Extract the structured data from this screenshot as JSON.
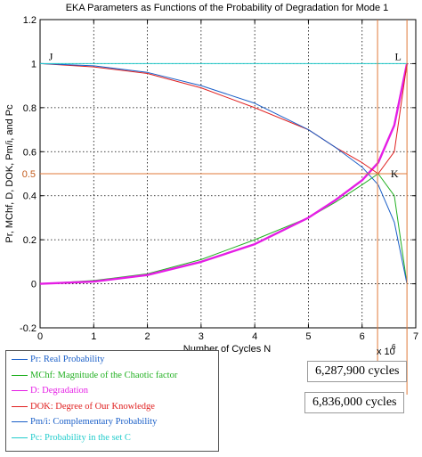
{
  "chart_data": {
    "type": "line",
    "title": "EKA Parameters as Functions of the Probability of Degradation for Mode 1",
    "xlabel": "Number of Cycles N",
    "ylabel": "Pr, MChf, D, DOK, Pm/i, and Pc",
    "x_scale_label": "x 10",
    "x_scale_exponent": "6",
    "xlim": [
      0,
      7
    ],
    "ylim": [
      -0.2,
      1.2
    ],
    "xticks": [
      "0",
      "1",
      "2",
      "3",
      "4",
      "5",
      "6",
      "7"
    ],
    "yticks": [
      "-0.2",
      "0",
      "0.2",
      "0.4",
      "0.6",
      "0.8",
      "1",
      "1.2"
    ],
    "grid": true,
    "series": [
      {
        "name": "Pr: Real Probability",
        "color": "#1a5fc8",
        "x": [
          0,
          1,
          2,
          3,
          4,
          5,
          5.5,
          6,
          6.3,
          6.6,
          6.836
        ],
        "y": [
          0,
          0.01,
          0.04,
          0.1,
          0.18,
          0.3,
          0.38,
          0.47,
          0.55,
          0.72,
          1.0
        ]
      },
      {
        "name": "MChf: Magnitude of the Chaotic factor",
        "color": "#22b022",
        "x": [
          0,
          1,
          2,
          3,
          4,
          5,
          5.5,
          6,
          6.3,
          6.6,
          6.836
        ],
        "y": [
          0,
          0.015,
          0.045,
          0.11,
          0.2,
          0.3,
          0.37,
          0.45,
          0.5,
          0.4,
          0
        ]
      },
      {
        "name": "D: Degradation",
        "color": "#e51ee5",
        "x": [
          0,
          1,
          2,
          3,
          4,
          5,
          5.5,
          6,
          6.3,
          6.6,
          6.836
        ],
        "y": [
          0,
          0.01,
          0.04,
          0.1,
          0.18,
          0.3,
          0.38,
          0.47,
          0.55,
          0.72,
          1.0
        ]
      },
      {
        "name": "DOK: Degree of Our Knowledge",
        "color": "#e02020",
        "x": [
          0,
          1,
          2,
          3,
          4,
          5,
          5.5,
          6,
          6.3,
          6.6,
          6.836
        ],
        "y": [
          1,
          0.985,
          0.955,
          0.89,
          0.8,
          0.7,
          0.62,
          0.55,
          0.5,
          0.6,
          1.0
        ]
      },
      {
        "name": "Pm/i: Complementary Probability",
        "color": "#1a5fc8",
        "x": [
          0,
          1,
          2,
          3,
          4,
          5,
          5.5,
          6,
          6.3,
          6.6,
          6.836
        ],
        "y": [
          1,
          0.99,
          0.96,
          0.9,
          0.82,
          0.7,
          0.62,
          0.53,
          0.45,
          0.28,
          0
        ]
      },
      {
        "name": "Pc: Probability in the set C",
        "color": "#22cccc",
        "x": [
          0,
          6.836
        ],
        "y": [
          1,
          1
        ]
      }
    ],
    "annotations": [
      {
        "text": "J",
        "x": 0.2,
        "y": 1.0
      },
      {
        "text": "L",
        "x": 6.836,
        "y": 1.0
      },
      {
        "text": "K",
        "x": 6.4,
        "y": 0.5
      },
      {
        "text": "0.5",
        "x": -0.1,
        "y": 0.5
      },
      {
        "text": "6,287,900 cycles",
        "x": 6.2879
      },
      {
        "text": "6,836,000 cycles",
        "x": 6.836
      }
    ]
  }
}
